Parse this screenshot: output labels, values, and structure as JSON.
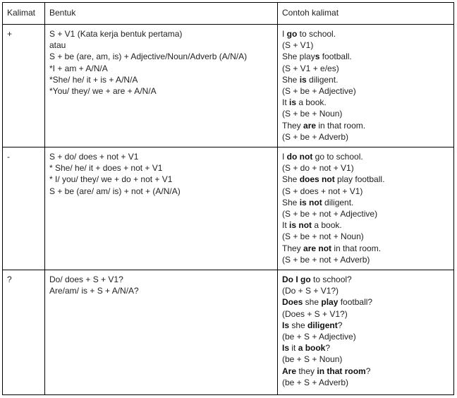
{
  "headers": [
    "Kalimat",
    "Bentuk",
    "Contoh kalimat"
  ],
  "rows": [
    {
      "kalimat": "+",
      "bentuk": [
        "S + V1 (Kata kerja bentuk pertama)",
        "atau",
        "S + be (are, am, is) + Adjective/Noun/Adverb (A/N/A)",
        "*I + am + A/N/A",
        "*She/ he/ it + is + A/N/A",
        "*You/ they/ we + are + A/N/A"
      ],
      "contoh": [
        [
          {
            "t": "I "
          },
          {
            "t": "go",
            "b": true
          },
          {
            "t": " to school."
          }
        ],
        [
          {
            "t": "(S + V1)"
          }
        ],
        [
          {
            "t": "She play"
          },
          {
            "t": "s",
            "b": true
          },
          {
            "t": " football."
          }
        ],
        [
          {
            "t": "(S + V1 + e/es)"
          }
        ],
        [
          {
            "t": "She "
          },
          {
            "t": "is",
            "b": true
          },
          {
            "t": " diligent."
          }
        ],
        [
          {
            "t": "(S + be + Adjective)"
          }
        ],
        [
          {
            "t": "It "
          },
          {
            "t": "is",
            "b": true
          },
          {
            "t": " a book."
          }
        ],
        [
          {
            "t": "(S + be + Noun)"
          }
        ],
        [
          {
            "t": "They "
          },
          {
            "t": "are",
            "b": true
          },
          {
            "t": " in that room."
          }
        ],
        [
          {
            "t": "(S + be + Adverb)"
          }
        ]
      ]
    },
    {
      "kalimat": "-",
      "bentuk": [
        "S + do/ does + not + V1",
        "* She/ he/ it + does + not + V1",
        "* I/ you/ they/ we + do + not + V1",
        "S + be (are/ am/ is) + not + (A/N/A)"
      ],
      "contoh": [
        [
          {
            "t": "I "
          },
          {
            "t": "do not",
            "b": true
          },
          {
            "t": " go to school."
          }
        ],
        [
          {
            "t": "(S + do + not + V1)"
          }
        ],
        [
          {
            "t": "She "
          },
          {
            "t": "does not",
            "b": true
          },
          {
            "t": " play football."
          }
        ],
        [
          {
            "t": "(S + does + not + V1)"
          }
        ],
        [
          {
            "t": "She "
          },
          {
            "t": "is not",
            "b": true
          },
          {
            "t": " diligent."
          }
        ],
        [
          {
            "t": "(S + be + not + Adjective)"
          }
        ],
        [
          {
            "t": "It "
          },
          {
            "t": "is not",
            "b": true
          },
          {
            "t": " a book."
          }
        ],
        [
          {
            "t": "(S + be + not + Noun)"
          }
        ],
        [
          {
            "t": "They "
          },
          {
            "t": "are not",
            "b": true
          },
          {
            "t": " in that room."
          }
        ],
        [
          {
            "t": "(S + be + not + Adverb)"
          }
        ]
      ]
    },
    {
      "kalimat": "?",
      "bentuk": [
        "Do/ does + S + V1?",
        "Are/am/ is + S + A/N/A?"
      ],
      "contoh": [
        [
          {
            "t": "Do I go",
            "b": true
          },
          {
            "t": " to school?"
          }
        ],
        [
          {
            "t": "(Do + S + V1?)"
          }
        ],
        [
          {
            "t": "Does",
            "b": true
          },
          {
            "t": " she "
          },
          {
            "t": "play",
            "b": true
          },
          {
            "t": " football?"
          }
        ],
        [
          {
            "t": "(Does + S + V1?)"
          }
        ],
        [
          {
            "t": "Is",
            "b": true
          },
          {
            "t": " she "
          },
          {
            "t": "diligent",
            "b": true
          },
          {
            "t": "?"
          }
        ],
        [
          {
            "t": "(be + S + Adjective)"
          }
        ],
        [
          {
            "t": "Is",
            "b": true
          },
          {
            "t": " it "
          },
          {
            "t": "a book",
            "b": true
          },
          {
            "t": "?"
          }
        ],
        [
          {
            "t": "(be + S + Noun)"
          }
        ],
        [
          {
            "t": "Are",
            "b": true
          },
          {
            "t": " they "
          },
          {
            "t": "in that room",
            "b": true
          },
          {
            "t": "?"
          }
        ],
        [
          {
            "t": "(be + S + Adverb)"
          }
        ]
      ]
    }
  ]
}
